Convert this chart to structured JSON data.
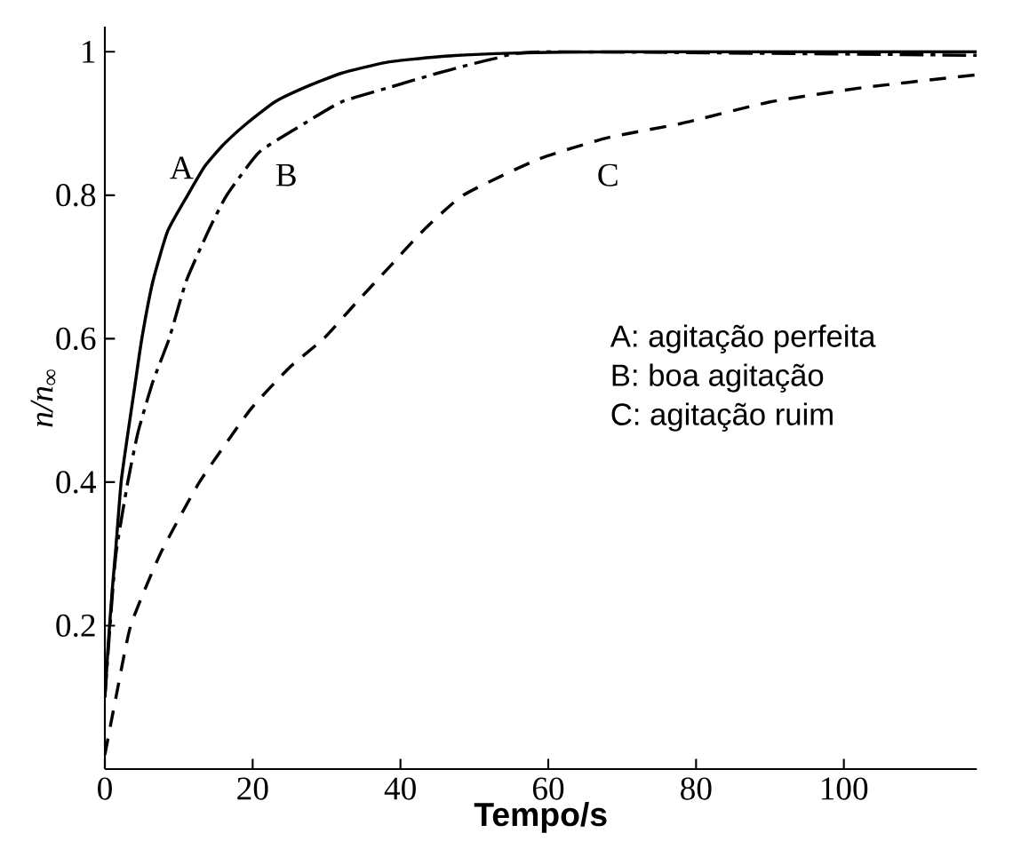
{
  "chart_data": {
    "type": "line",
    "xlabel": "Tempo/s",
    "ylabel": "n/n$_{∞}$",
    "xlim": [
      0,
      118
    ],
    "ylim": [
      0,
      1.035
    ],
    "xticks": [
      0,
      20,
      40,
      60,
      80,
      100
    ],
    "yticks": [
      0.2,
      0.4,
      0.6,
      0.8,
      1
    ],
    "grid": false,
    "marker": "none",
    "series": [
      {
        "name": "A",
        "color": "#000000",
        "line_style": "solid",
        "x": [
          0,
          0.5,
          1,
          1.5,
          2.2,
          3,
          4,
          5,
          6.5,
          8.5,
          11.2,
          13.5,
          16,
          19.2,
          23,
          27,
          32,
          38,
          45,
          55,
          70,
          118
        ],
        "values": [
          0.1,
          0.18,
          0.25,
          0.31,
          0.4,
          0.46,
          0.53,
          0.6,
          0.68,
          0.75,
          0.8,
          0.84,
          0.87,
          0.9,
          0.93,
          0.95,
          0.97,
          0.985,
          0.993,
          0.998,
          1,
          1
        ]
      },
      {
        "name": "B",
        "color": "#000000",
        "line_style": "dashdot",
        "x": [
          0,
          0.7,
          1.5,
          3.1,
          4.5,
          6.5,
          8.7,
          11,
          14,
          16.5,
          20.9,
          27,
          32,
          38.4,
          45,
          52.5,
          60,
          118
        ],
        "values": [
          0.1,
          0.2,
          0.3,
          0.4,
          0.47,
          0.54,
          0.6,
          0.68,
          0.75,
          0.8,
          0.86,
          0.9,
          0.93,
          0.95,
          0.97,
          0.99,
          1,
          0.995
        ]
      },
      {
        "name": "C",
        "color": "#000000",
        "line_style": "dashed",
        "x": [
          0,
          1.5,
          3.5,
          7.5,
          12.8,
          19.6,
          25,
          29.6,
          34,
          38.5,
          43,
          48.5,
          58.6,
          68,
          78,
          90,
          102.6,
          118
        ],
        "values": [
          0.02,
          0.1,
          0.2,
          0.3,
          0.4,
          0.5,
          0.56,
          0.6,
          0.65,
          0.7,
          0.75,
          0.8,
          0.85,
          0.88,
          0.9,
          0.93,
          0.95,
          0.968
        ]
      }
    ],
    "annotations": [
      "A: agitação perfeita",
      "B: boa agitação",
      "C: agitação ruim"
    ]
  }
}
